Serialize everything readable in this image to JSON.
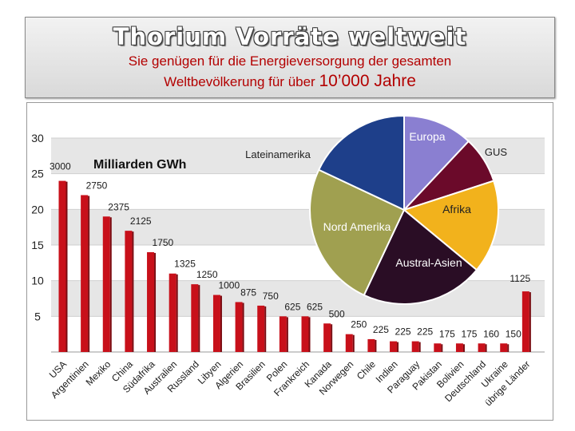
{
  "header": {
    "title": "Thorium Vorräte weltweit",
    "subtitle_line1": "Sie genügen für die Energieversorgung der gesamten",
    "subtitle_line2_prefix": "Weltbevölkerung für über",
    "subtitle_line2_number": "10’000 Jahre"
  },
  "chart_data": [
    {
      "type": "bar",
      "unit_label": "Milliarden GWh",
      "categories": [
        "USA",
        "Argentinien",
        "Mexiko",
        "China",
        "Südafrika",
        "Australien",
        "Russland",
        "Libyen",
        "Algerien",
        "Brasilien",
        "Polen",
        "Frankreich",
        "Kanada",
        "Norwegen",
        "Chile",
        "Indien",
        "Paraguay",
        "Pakistan",
        "Bolivien",
        "Deutschland",
        "Ukraine",
        "übrige Länder"
      ],
      "values": [
        24,
        22,
        19,
        17,
        14,
        11,
        9.5,
        8,
        7,
        6.5,
        5,
        5,
        4,
        2.5,
        1.8,
        1.5,
        1.5,
        1.2,
        1.2,
        1.2,
        1.2,
        8.5
      ],
      "data_labels": [
        "3000",
        "2750",
        "2375",
        "2125",
        "1750",
        "1325",
        "1250",
        "1000",
        "875",
        "750",
        "625",
        "625",
        "500",
        "250",
        "225",
        "225",
        "225",
        "175",
        "175",
        "160",
        "150",
        "1125"
      ],
      "y_ticks": [
        "5",
        "10",
        "15",
        "20",
        "25",
        "30"
      ],
      "ylim": [
        0,
        30
      ],
      "bar_color": "#c8101a",
      "grid": true
    },
    {
      "type": "pie",
      "slices": [
        {
          "label": "Europa",
          "value": 12,
          "color": "#8a7fd1"
        },
        {
          "label": "GUS",
          "value": 8,
          "color": "#6b0a2a"
        },
        {
          "label": "Afrika",
          "value": 16,
          "color": "#f2b21c"
        },
        {
          "label": "Austral-Asien",
          "value": 21,
          "color": "#2a0d25"
        },
        {
          "label": "Nord Amerika",
          "value": 25,
          "color": "#a0a050"
        },
        {
          "label": "Lateinamerika",
          "value": 18,
          "color": "#1e3f8a"
        }
      ]
    }
  ]
}
